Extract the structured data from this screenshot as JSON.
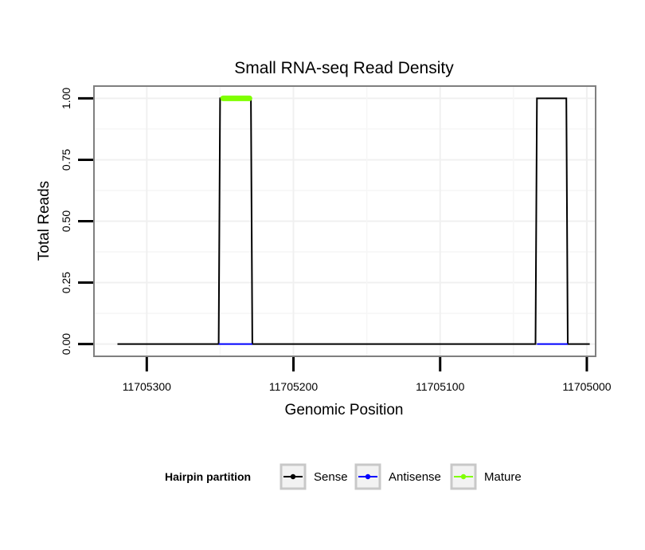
{
  "chart_data": {
    "type": "line",
    "title": "Small RNA-seq Read Density",
    "xlabel": "Genomic Position",
    "ylabel": "Total Reads",
    "xlim": [
      11705336,
      11704994
    ],
    "ylim": [
      -0.05,
      1.05
    ],
    "x_reversed": true,
    "x_ticks": [
      11705300,
      11705200,
      11705100,
      11705000
    ],
    "x_tick_labels": [
      "11705300",
      "11705200",
      "11705100",
      "11705000"
    ],
    "y_ticks": [
      0,
      0.25,
      0.5,
      0.75,
      1
    ],
    "y_tick_labels": [
      "0.00",
      "0.25",
      "0.50",
      "0.75",
      "1.00"
    ],
    "grid": true,
    "series": [
      {
        "name": "Sense",
        "color": "#000000",
        "x": [
          11705320,
          11705251,
          11705250,
          11705229,
          11705228,
          11705035,
          11705034,
          11705014,
          11705013,
          11704998
        ],
        "y": [
          0,
          0,
          1,
          1,
          0,
          0,
          1,
          1,
          0,
          0
        ]
      },
      {
        "name": "Antisense",
        "color": "#0000ff",
        "x": [
          11705251,
          11705228,
          null,
          11705034,
          11705013
        ],
        "y": [
          0,
          0,
          null,
          0,
          0
        ]
      },
      {
        "name": "Mature",
        "color": "#7fff00",
        "x": [
          11705248,
          11705230
        ],
        "y": [
          1,
          1
        ]
      }
    ],
    "legend": {
      "title": "Hairpin partition",
      "position": "bottom",
      "entries": [
        "Sense",
        "Antisense",
        "Mature"
      ]
    }
  }
}
